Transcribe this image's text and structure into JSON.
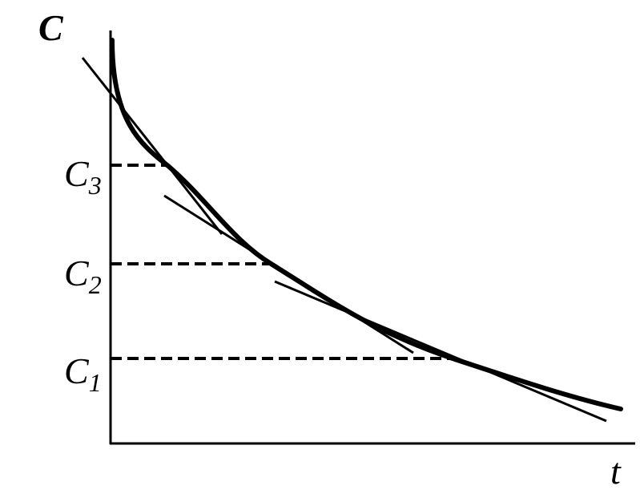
{
  "axes": {
    "y_label": "C",
    "x_label": "t"
  },
  "levels": [
    {
      "symbol": "C",
      "subscript": "3"
    },
    {
      "symbol": "C",
      "subscript": "2"
    },
    {
      "symbol": "C",
      "subscript": "1"
    }
  ]
}
